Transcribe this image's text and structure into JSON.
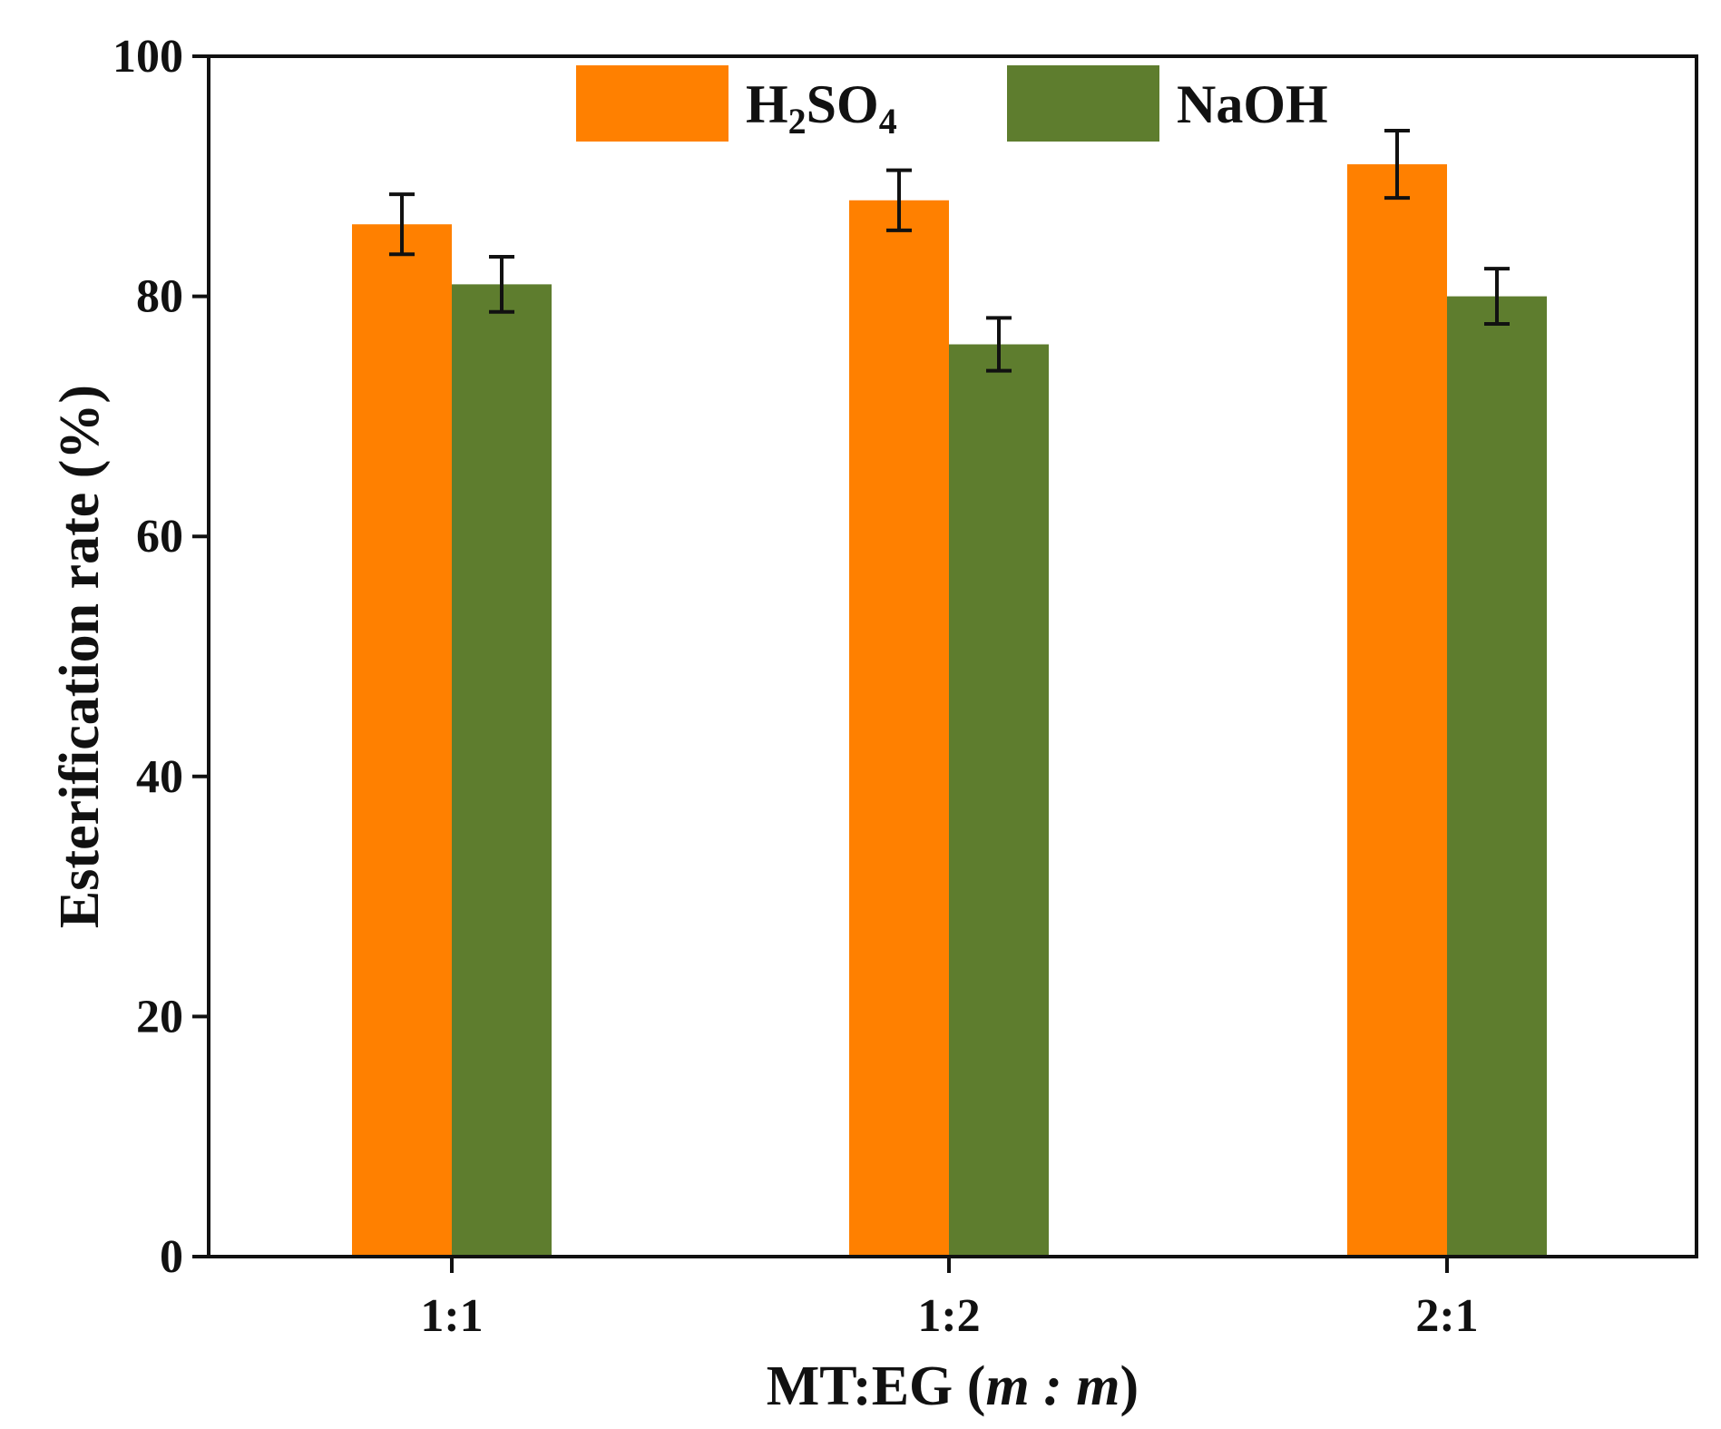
{
  "chart_data": {
    "type": "bar",
    "title": "",
    "xlabel_main": "MT:EG (",
    "xlabel_italic": "m : m",
    "xlabel_close": ")",
    "ylabel": "Esterification rate (%)",
    "ylim": [
      0,
      100
    ],
    "yticks": [
      0,
      20,
      40,
      60,
      80,
      100
    ],
    "categories": [
      "1:1",
      "1:2",
      "2:1"
    ],
    "legend_position": "top-center",
    "grid": false,
    "series": [
      {
        "name": "H2SO4",
        "label_parts": [
          "H",
          "2",
          "SO",
          "4"
        ],
        "color": "#ff8000",
        "values": [
          86,
          88,
          91
        ],
        "errors": [
          2.5,
          2.5,
          2.8
        ]
      },
      {
        "name": "NaOH",
        "label_parts": [
          "NaOH"
        ],
        "color": "#5e7d2e",
        "values": [
          81,
          76,
          80
        ],
        "errors": [
          2.3,
          2.2,
          2.3
        ]
      }
    ]
  }
}
